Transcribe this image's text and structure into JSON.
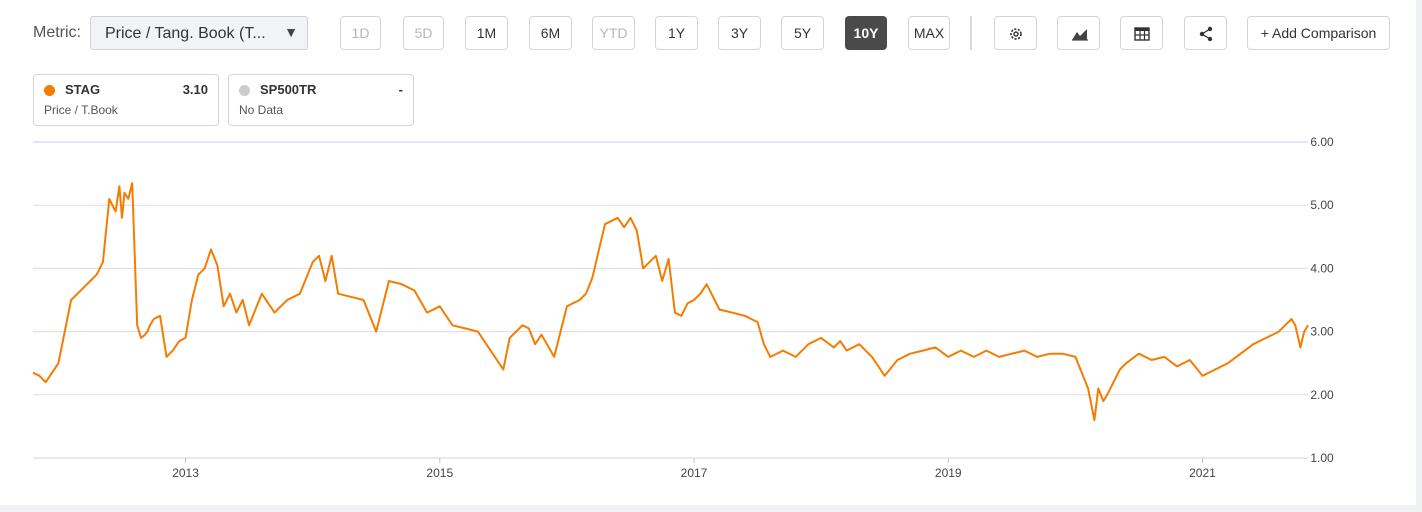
{
  "toolbar": {
    "metric_label": "Metric:",
    "metric_value": "Price / Tang. Book (T...",
    "ranges": [
      {
        "label": "1D",
        "state": "disabled"
      },
      {
        "label": "5D",
        "state": "disabled"
      },
      {
        "label": "1M",
        "state": "normal"
      },
      {
        "label": "6M",
        "state": "normal"
      },
      {
        "label": "YTD",
        "state": "disabled"
      },
      {
        "label": "1Y",
        "state": "normal"
      },
      {
        "label": "3Y",
        "state": "normal"
      },
      {
        "label": "5Y",
        "state": "normal"
      },
      {
        "label": "10Y",
        "state": "active"
      },
      {
        "label": "MAX",
        "state": "normal"
      }
    ],
    "icons": [
      "settings-icon",
      "chart-type-icon",
      "table-icon",
      "share-icon"
    ],
    "add_comparison_label": "+ Add Comparison"
  },
  "legend": [
    {
      "ticker": "STAG",
      "value": "3.10",
      "subtitle": "Price / T.Book",
      "color": "#f57c00"
    },
    {
      "ticker": "SP500TR",
      "value": "-",
      "subtitle": "No Data",
      "color": "#cccccc"
    }
  ],
  "chart_data": {
    "type": "line",
    "xlabel": "",
    "ylabel": "",
    "ylim": [
      1.0,
      6.0
    ],
    "y_ticks": [
      "6.00",
      "5.00",
      "4.00",
      "3.00",
      "2.00",
      "1.00"
    ],
    "x_ticks": [
      "2013",
      "2015",
      "2017",
      "2019",
      "2021"
    ],
    "xlim": [
      2011.8,
      2021.83
    ],
    "grid": "horizontal",
    "series": [
      {
        "name": "STAG",
        "color": "#f57c00",
        "x": [
          2011.8,
          2011.85,
          2011.9,
          2011.95,
          2012.0,
          2012.1,
          2012.15,
          2012.2,
          2012.25,
          2012.3,
          2012.35,
          2012.4,
          2012.45,
          2012.48,
          2012.5,
          2012.52,
          2012.55,
          2012.58,
          2012.62,
          2012.65,
          2012.68,
          2012.7,
          2012.72,
          2012.75,
          2012.8,
          2012.85,
          2012.9,
          2012.95,
          2013.0,
          2013.05,
          2013.1,
          2013.15,
          2013.2,
          2013.25,
          2013.3,
          2013.35,
          2013.4,
          2013.45,
          2013.5,
          2013.6,
          2013.7,
          2013.8,
          2013.9,
          2014.0,
          2014.05,
          2014.1,
          2014.15,
          2014.2,
          2014.3,
          2014.4,
          2014.5,
          2014.6,
          2014.7,
          2014.8,
          2014.9,
          2015.0,
          2015.1,
          2015.2,
          2015.3,
          2015.4,
          2015.5,
          2015.55,
          2015.6,
          2015.65,
          2015.7,
          2015.75,
          2015.8,
          2015.9,
          2016.0,
          2016.1,
          2016.15,
          2016.2,
          2016.3,
          2016.4,
          2016.45,
          2016.5,
          2016.55,
          2016.6,
          2016.65,
          2016.7,
          2016.75,
          2016.8,
          2016.85,
          2016.9,
          2016.95,
          2017.0,
          2017.05,
          2017.1,
          2017.2,
          2017.3,
          2017.4,
          2017.45,
          2017.5,
          2017.55,
          2017.6,
          2017.7,
          2017.8,
          2017.9,
          2018.0,
          2018.1,
          2018.15,
          2018.2,
          2018.3,
          2018.4,
          2018.5,
          2018.6,
          2018.7,
          2018.8,
          2018.9,
          2019.0,
          2019.05,
          2019.1,
          2019.2,
          2019.3,
          2019.4,
          2019.5,
          2019.6,
          2019.7,
          2019.8,
          2019.9,
          2020.0,
          2020.1,
          2020.15,
          2020.18,
          2020.22,
          2020.25,
          2020.3,
          2020.35,
          2020.4,
          2020.5,
          2020.6,
          2020.7,
          2020.8,
          2020.9,
          2021.0,
          2021.1,
          2021.2,
          2021.3,
          2021.4,
          2021.5,
          2021.6,
          2021.65,
          2021.7,
          2021.73,
          2021.77,
          2021.8,
          2021.83
        ],
        "values": [
          2.35,
          2.3,
          2.2,
          2.35,
          2.5,
          3.5,
          3.6,
          3.7,
          3.8,
          3.9,
          4.1,
          5.1,
          4.9,
          5.3,
          4.8,
          5.2,
          5.1,
          5.35,
          3.1,
          2.9,
          2.95,
          3.0,
          3.1,
          3.2,
          3.25,
          2.6,
          2.7,
          2.85,
          2.9,
          3.5,
          3.9,
          4.0,
          4.3,
          4.05,
          3.4,
          3.6,
          3.3,
          3.5,
          3.1,
          3.6,
          3.3,
          3.5,
          3.6,
          4.1,
          4.2,
          3.8,
          4.2,
          3.6,
          3.55,
          3.5,
          3.0,
          3.8,
          3.75,
          3.65,
          3.3,
          3.4,
          3.1,
          3.05,
          3.0,
          2.7,
          2.4,
          2.9,
          3.0,
          3.1,
          3.05,
          2.8,
          2.95,
          2.6,
          3.4,
          3.5,
          3.6,
          3.85,
          4.7,
          4.8,
          4.65,
          4.8,
          4.6,
          4.0,
          4.1,
          4.2,
          3.8,
          4.15,
          3.3,
          3.25,
          3.45,
          3.5,
          3.6,
          3.75,
          3.35,
          3.3,
          3.25,
          3.2,
          3.15,
          2.8,
          2.6,
          2.7,
          2.6,
          2.8,
          2.9,
          2.75,
          2.85,
          2.7,
          2.8,
          2.6,
          2.3,
          2.55,
          2.65,
          2.7,
          2.75,
          2.6,
          2.65,
          2.7,
          2.6,
          2.7,
          2.6,
          2.65,
          2.7,
          2.6,
          2.65,
          2.65,
          2.6,
          2.1,
          1.6,
          2.1,
          1.9,
          2.0,
          2.2,
          2.4,
          2.5,
          2.65,
          2.55,
          2.6,
          2.45,
          2.55,
          2.3,
          2.4,
          2.5,
          2.65,
          2.8,
          2.9,
          3.0,
          3.1,
          3.2,
          3.1,
          2.75,
          3.0,
          3.1
        ]
      }
    ]
  }
}
